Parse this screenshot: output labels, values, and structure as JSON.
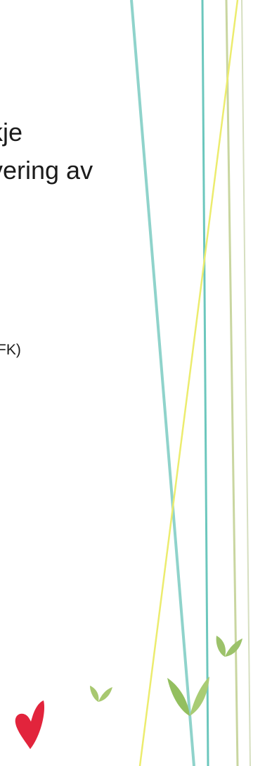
{
  "document": {
    "title_lines": [
      "kje",
      "vering av"
    ],
    "subtitle": "FK)"
  },
  "colors": {
    "teal": "#8fd3cb",
    "teal_dark": "#6cc7bd",
    "yellow": "#ecec6e",
    "olive": "#c9d6a0",
    "sage": "#d6dfc0",
    "leaf_green": "#9cc26a",
    "heart_red": "#e2243c"
  },
  "icons": [
    "leaf-icon",
    "leaf-icon",
    "leaf-icon",
    "heart-icon"
  ]
}
